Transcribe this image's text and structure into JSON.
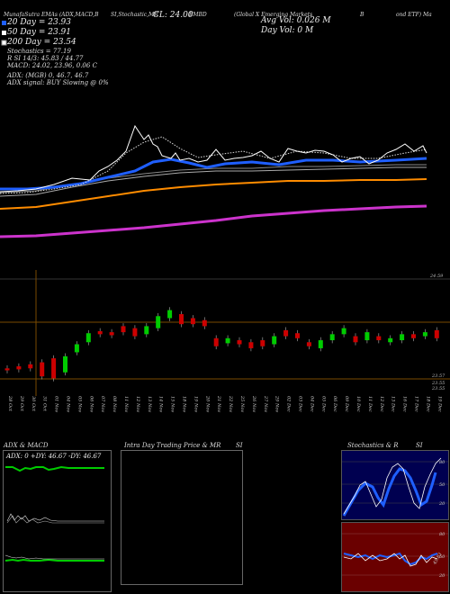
{
  "header": {
    "top_line_left": "MunafaSutra EMAs (ADX,MACD,B",
    "top_line_mid": "SI,Stochastic,MR",
    "top_line_right1": "(Global X Emerging Markets",
    "top_line_right2": "B",
    "top_line_right3": "ond ETF) Ma",
    "symbol": "EMBD",
    "cl_label": "CL: 24.00",
    "avg_vol": "Avg Vol: 0.026  M",
    "day_vol": "Day Vol: 0  M",
    "ema20": "20 Day = 23.93",
    "ema50": "50 Day = 23.91",
    "ema200": "200 Day = 23.54",
    "stochastics": "Stochastics = 77.19",
    "rsi": "R          SI 14/3: 45.83 / 44.77",
    "macd": "MACD: 24.02, 23.96, 0.06  C",
    "adx_line": "ADX:                    (MGB) 0, 46.7, 46.7",
    "adx_signal": "ADX  signal:                        BUY Slowing @ 0%"
  },
  "price_chart": {
    "upper_label": "24.59",
    "lower_label1": "23.57",
    "lower_label2": "23.55",
    "lower_label3": "23.55"
  },
  "x_dates": [
    "28 Oct",
    "29 Oct",
    "30 Oct",
    "31 Oct",
    "01 Nov",
    "04 Nov",
    "05 Nov",
    "06 Nov",
    "07 Nov",
    "08 Nov",
    "11 Nov",
    "12 Nov",
    "13 Nov",
    "14 Nov",
    "15 Nov",
    "18 Nov",
    "19 Nov",
    "20 Nov",
    "21 Nov",
    "22 Nov",
    "25 Nov",
    "26 Nov",
    "27 Nov",
    "29 Nov",
    "02 Dec",
    "03 Dec",
    "04 Dec",
    "05 Dec",
    "06 Dec",
    "09 Dec",
    "10 Dec",
    "11 Dec",
    "12 Dec",
    "13 Dec",
    "16 Dec",
    "17 Dec",
    "18 Dec",
    "19 Dec"
  ],
  "candles": [
    {
      "o": 23.7,
      "c": 23.68,
      "up": false
    },
    {
      "o": 23.72,
      "c": 23.69,
      "up": false
    },
    {
      "o": 23.74,
      "c": 23.7,
      "up": false
    },
    {
      "o": 23.76,
      "c": 23.62,
      "up": false
    },
    {
      "o": 23.8,
      "c": 23.6,
      "up": false
    },
    {
      "o": 23.66,
      "c": 23.82,
      "up": true
    },
    {
      "o": 23.86,
      "c": 23.94,
      "up": true
    },
    {
      "o": 23.96,
      "c": 24.05,
      "up": true
    },
    {
      "o": 24.07,
      "c": 24.04,
      "up": false
    },
    {
      "o": 24.06,
      "c": 24.03,
      "up": false
    },
    {
      "o": 24.12,
      "c": 24.06,
      "up": false
    },
    {
      "o": 24.1,
      "c": 24.02,
      "up": false
    },
    {
      "o": 24.04,
      "c": 24.12,
      "up": true
    },
    {
      "o": 24.1,
      "c": 24.22,
      "up": true
    },
    {
      "o": 24.2,
      "c": 24.28,
      "up": true
    },
    {
      "o": 24.24,
      "c": 24.14,
      "up": false
    },
    {
      "o": 24.2,
      "c": 24.14,
      "up": false
    },
    {
      "o": 24.18,
      "c": 24.12,
      "up": false
    },
    {
      "o": 24.0,
      "c": 23.92,
      "up": false
    },
    {
      "o": 23.95,
      "c": 24.0,
      "up": true
    },
    {
      "o": 23.98,
      "c": 23.94,
      "up": false
    },
    {
      "o": 23.96,
      "c": 23.9,
      "up": false
    },
    {
      "o": 23.98,
      "c": 23.92,
      "up": false
    },
    {
      "o": 23.94,
      "c": 24.02,
      "up": true
    },
    {
      "o": 24.08,
      "c": 24.02,
      "up": false
    },
    {
      "o": 24.05,
      "c": 24.0,
      "up": false
    },
    {
      "o": 23.96,
      "c": 23.92,
      "up": false
    },
    {
      "o": 23.9,
      "c": 23.98,
      "up": true
    },
    {
      "o": 23.98,
      "c": 24.04,
      "up": true
    },
    {
      "o": 24.04,
      "c": 24.1,
      "up": true
    },
    {
      "o": 24.02,
      "c": 23.96,
      "up": false
    },
    {
      "o": 23.98,
      "c": 24.06,
      "up": true
    },
    {
      "o": 24.02,
      "c": 23.98,
      "up": false
    },
    {
      "o": 23.96,
      "c": 24.0,
      "up": true
    },
    {
      "o": 23.98,
      "c": 24.04,
      "up": true
    },
    {
      "o": 24.04,
      "c": 24.0,
      "up": false
    },
    {
      "o": 24.02,
      "c": 24.06,
      "up": true
    },
    {
      "o": 24.08,
      "c": 24.0,
      "up": false
    }
  ],
  "bottom_panels": {
    "adx_title": "ADX  & MACD",
    "adx_values": "ADX: 0  +DY: 46.67  -DY: 46.67",
    "mr_title": "Intra  Day Trading Price  & MR",
    "mr_si": "SI",
    "stoch_title": "Stochastics & R",
    "stoch_si": "SI",
    "stoch_ticks": [
      "80",
      "50",
      "20"
    ],
    "rsi_ticks": [
      "80",
      "50",
      "20"
    ],
    "rsi_value": "45.83"
  },
  "colors": {
    "ema_blue": "#1f5fff",
    "orange": "#ff8c00",
    "magenta": "#cc33cc",
    "green": "#00cc00",
    "red": "#cc0000",
    "grid_brown": "#7a4a00",
    "stoch_bg": "#000050",
    "rsi_bg": "#6a0000"
  }
}
